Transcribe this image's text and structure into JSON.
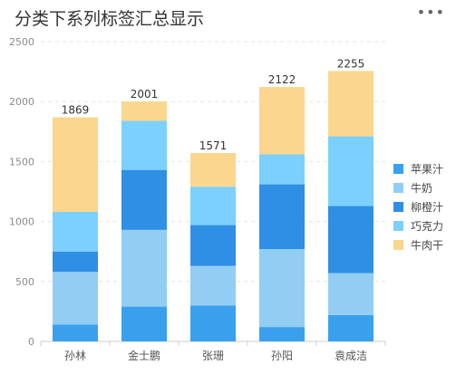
{
  "header": {
    "title": "分类下系列标签汇总显示",
    "more_icon": "more-icon"
  },
  "chart_data": {
    "type": "bar",
    "stacked": true,
    "title": "分类下系列标签汇总显示",
    "categories": [
      "孙林",
      "金士鹏",
      "张珊",
      "孙阳",
      "袁成洁"
    ],
    "totals": [
      1869,
      2001,
      1571,
      2122,
      2255
    ],
    "series": [
      {
        "name": "苹果汁",
        "color": "#3aa0ee",
        "values": [
          140,
          290,
          300,
          120,
          220
        ]
      },
      {
        "name": "牛奶",
        "color": "#92cdf3",
        "values": [
          440,
          640,
          330,
          650,
          350
        ]
      },
      {
        "name": "柳橙汁",
        "color": "#2f8fe4",
        "values": [
          170,
          500,
          340,
          540,
          560
        ]
      },
      {
        "name": "巧克力",
        "color": "#7bd0fd",
        "values": [
          330,
          410,
          320,
          250,
          580
        ]
      },
      {
        "name": "牛肉干",
        "color": "#fad68f",
        "values": [
          789,
          161,
          281,
          562,
          545
        ]
      }
    ],
    "ylim": [
      0,
      2500
    ],
    "yticks": [
      0,
      500,
      1000,
      1500,
      2000,
      2500
    ],
    "grid": true,
    "legend_position": "right"
  }
}
